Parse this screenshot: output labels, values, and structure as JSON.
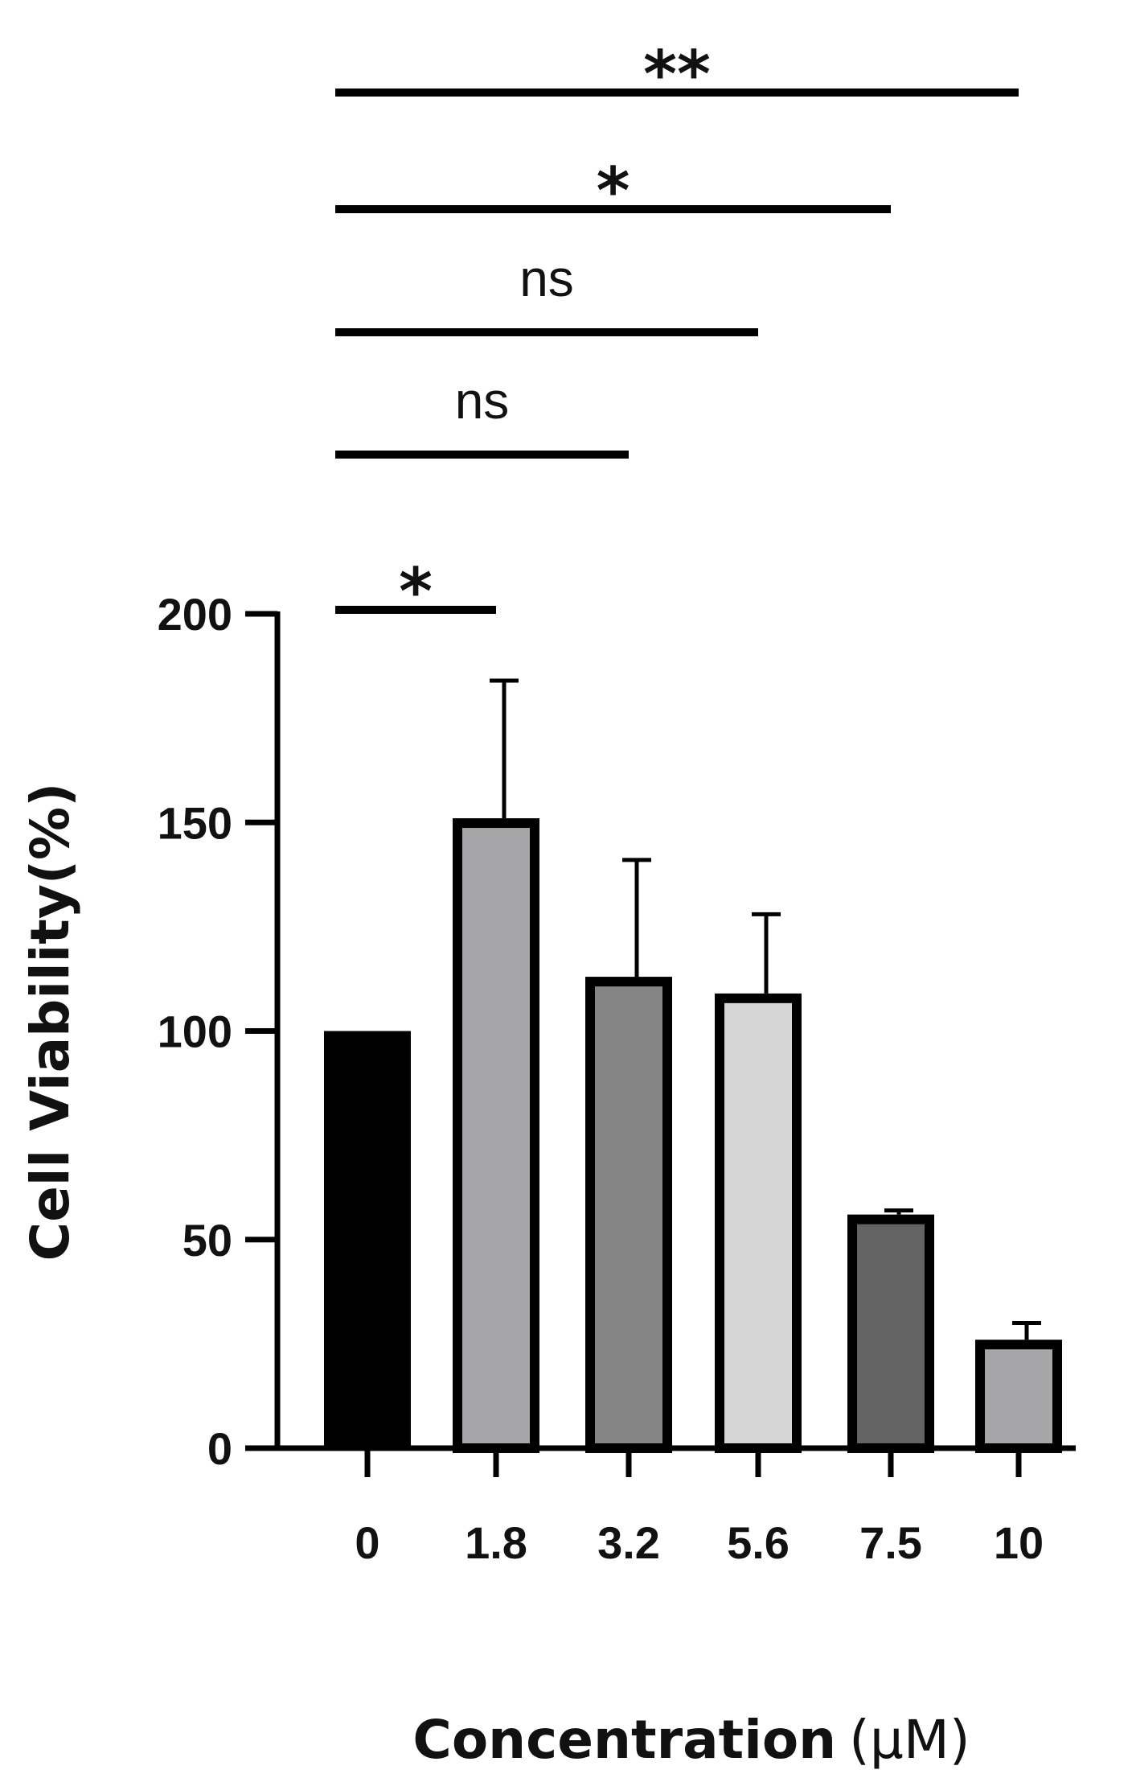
{
  "chart_data": {
    "type": "bar",
    "title": "",
    "ylabel": "Cell Viability(%)",
    "xlabel": "Concentration",
    "xlabel_unit": "(μM)",
    "categories": [
      "0",
      "1.8",
      "3.2",
      "5.6",
      "7.5",
      "10"
    ],
    "values": [
      100,
      151,
      113,
      109,
      56,
      26
    ],
    "error_upper": [
      0,
      33,
      28,
      19,
      1,
      4
    ],
    "bar_colors": [
      "#000000",
      "#a6a6a8",
      "#858585",
      "#d6d6d6",
      "#636363",
      "#a6a6a8"
    ],
    "ylim": [
      0,
      200
    ],
    "yticks": [
      "0",
      "50",
      "100",
      "150",
      "200"
    ],
    "grid": false,
    "legend": false,
    "significance": [
      {
        "from": "0",
        "to": "1.8",
        "label": "*"
      },
      {
        "from": "0",
        "to": "3.2",
        "label": "ns"
      },
      {
        "from": "0",
        "to": "5.6",
        "label": "ns"
      },
      {
        "from": "0",
        "to": "7.5",
        "label": "*"
      },
      {
        "from": "0",
        "to": "10",
        "label": "**"
      }
    ]
  }
}
